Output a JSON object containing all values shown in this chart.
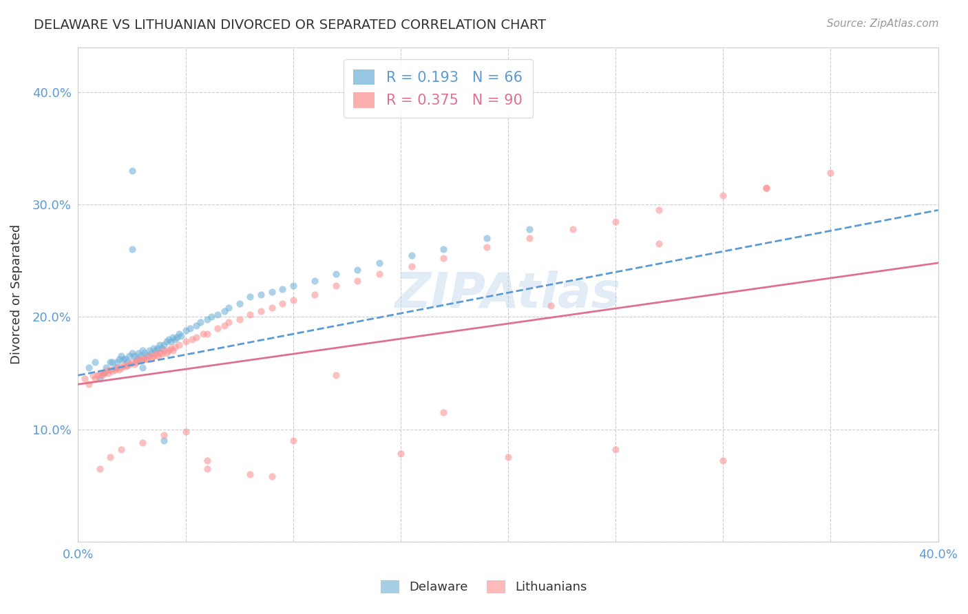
{
  "title": "DELAWARE VS LITHUANIAN DIVORCED OR SEPARATED CORRELATION CHART",
  "source": "Source: ZipAtlas.com",
  "ylabel": "Divorced or Separated",
  "xlim": [
    0.0,
    0.4
  ],
  "ylim": [
    0.0,
    0.44
  ],
  "yticks": [
    0.0,
    0.1,
    0.2,
    0.3,
    0.4
  ],
  "xticks": [
    0.0,
    0.05,
    0.1,
    0.15,
    0.2,
    0.25,
    0.3,
    0.35,
    0.4
  ],
  "xtick_labels": [
    "0.0%",
    "",
    "",
    "",
    "",
    "",
    "",
    "",
    "40.0%"
  ],
  "ytick_labels": [
    "",
    "10.0%",
    "20.0%",
    "30.0%",
    "40.0%"
  ],
  "watermark": "ZIPAtlas",
  "delaware_color": "#6baed6",
  "lithuanian_color": "#fc8d8d",
  "delaware_R": 0.193,
  "delaware_N": 66,
  "lithuanian_R": 0.375,
  "lithuanian_N": 90,
  "delaware_line_color": "#5b9bd5",
  "delaware_line_style": "--",
  "lithuanian_line_color": "#e07090",
  "lithuanian_line_style": "-",
  "grid_color": "#cccccc",
  "grid_style": "--",
  "background_color": "#ffffff",
  "title_color": "#333333",
  "axis_color": "#5b9bd5",
  "legend_R_color_delaware": "#5b9bd5",
  "legend_R_color_lithuanian": "#e07090",
  "delaware_x": [
    0.005,
    0.008,
    0.01,
    0.012,
    0.013,
    0.015,
    0.016,
    0.017,
    0.018,
    0.019,
    0.02,
    0.021,
    0.022,
    0.023,
    0.024,
    0.025,
    0.026,
    0.027,
    0.028,
    0.029,
    0.03,
    0.031,
    0.032,
    0.033,
    0.034,
    0.035,
    0.036,
    0.037,
    0.038,
    0.039,
    0.04,
    0.041,
    0.042,
    0.043,
    0.044,
    0.045,
    0.046,
    0.047,
    0.048,
    0.05,
    0.052,
    0.055,
    0.057,
    0.06,
    0.062,
    0.065,
    0.068,
    0.07,
    0.075,
    0.08,
    0.085,
    0.09,
    0.095,
    0.1,
    0.11,
    0.12,
    0.13,
    0.14,
    0.155,
    0.17,
    0.19,
    0.21,
    0.025,
    0.03,
    0.025,
    0.04
  ],
  "delaware_y": [
    0.155,
    0.16,
    0.145,
    0.15,
    0.155,
    0.16,
    0.16,
    0.155,
    0.16,
    0.162,
    0.165,
    0.162,
    0.163,
    0.16,
    0.165,
    0.168,
    0.165,
    0.162,
    0.168,
    0.165,
    0.17,
    0.168,
    0.165,
    0.17,
    0.168,
    0.172,
    0.17,
    0.172,
    0.175,
    0.172,
    0.175,
    0.178,
    0.18,
    0.178,
    0.182,
    0.18,
    0.182,
    0.185,
    0.183,
    0.188,
    0.19,
    0.192,
    0.195,
    0.198,
    0.2,
    0.202,
    0.205,
    0.208,
    0.212,
    0.218,
    0.22,
    0.222,
    0.225,
    0.228,
    0.232,
    0.238,
    0.242,
    0.248,
    0.255,
    0.26,
    0.27,
    0.278,
    0.33,
    0.155,
    0.26,
    0.09
  ],
  "lithuanian_x": [
    0.003,
    0.005,
    0.007,
    0.008,
    0.009,
    0.01,
    0.011,
    0.012,
    0.013,
    0.014,
    0.015,
    0.016,
    0.017,
    0.018,
    0.019,
    0.02,
    0.021,
    0.022,
    0.023,
    0.024,
    0.025,
    0.026,
    0.027,
    0.028,
    0.029,
    0.03,
    0.031,
    0.032,
    0.033,
    0.034,
    0.035,
    0.036,
    0.037,
    0.038,
    0.039,
    0.04,
    0.041,
    0.042,
    0.043,
    0.044,
    0.045,
    0.047,
    0.05,
    0.053,
    0.055,
    0.058,
    0.06,
    0.065,
    0.068,
    0.07,
    0.075,
    0.08,
    0.085,
    0.09,
    0.095,
    0.1,
    0.11,
    0.12,
    0.13,
    0.14,
    0.155,
    0.17,
    0.19,
    0.21,
    0.23,
    0.25,
    0.27,
    0.3,
    0.32,
    0.35,
    0.01,
    0.015,
    0.02,
    0.03,
    0.04,
    0.05,
    0.06,
    0.08,
    0.1,
    0.12,
    0.15,
    0.17,
    0.2,
    0.22,
    0.25,
    0.27,
    0.3,
    0.32,
    0.06,
    0.09
  ],
  "lithuanian_y": [
    0.145,
    0.14,
    0.148,
    0.145,
    0.148,
    0.15,
    0.148,
    0.15,
    0.152,
    0.15,
    0.153,
    0.152,
    0.153,
    0.155,
    0.153,
    0.155,
    0.157,
    0.156,
    0.157,
    0.158,
    0.16,
    0.158,
    0.16,
    0.162,
    0.161,
    0.162,
    0.163,
    0.162,
    0.165,
    0.163,
    0.165,
    0.167,
    0.165,
    0.168,
    0.167,
    0.17,
    0.168,
    0.17,
    0.172,
    0.17,
    0.173,
    0.175,
    0.178,
    0.18,
    0.182,
    0.185,
    0.185,
    0.19,
    0.192,
    0.195,
    0.198,
    0.202,
    0.205,
    0.208,
    0.212,
    0.215,
    0.22,
    0.228,
    0.232,
    0.238,
    0.245,
    0.252,
    0.262,
    0.27,
    0.278,
    0.285,
    0.295,
    0.308,
    0.315,
    0.328,
    0.065,
    0.075,
    0.082,
    0.088,
    0.095,
    0.098,
    0.072,
    0.06,
    0.09,
    0.148,
    0.078,
    0.115,
    0.075,
    0.21,
    0.082,
    0.265,
    0.072,
    0.315,
    0.065,
    0.058
  ]
}
